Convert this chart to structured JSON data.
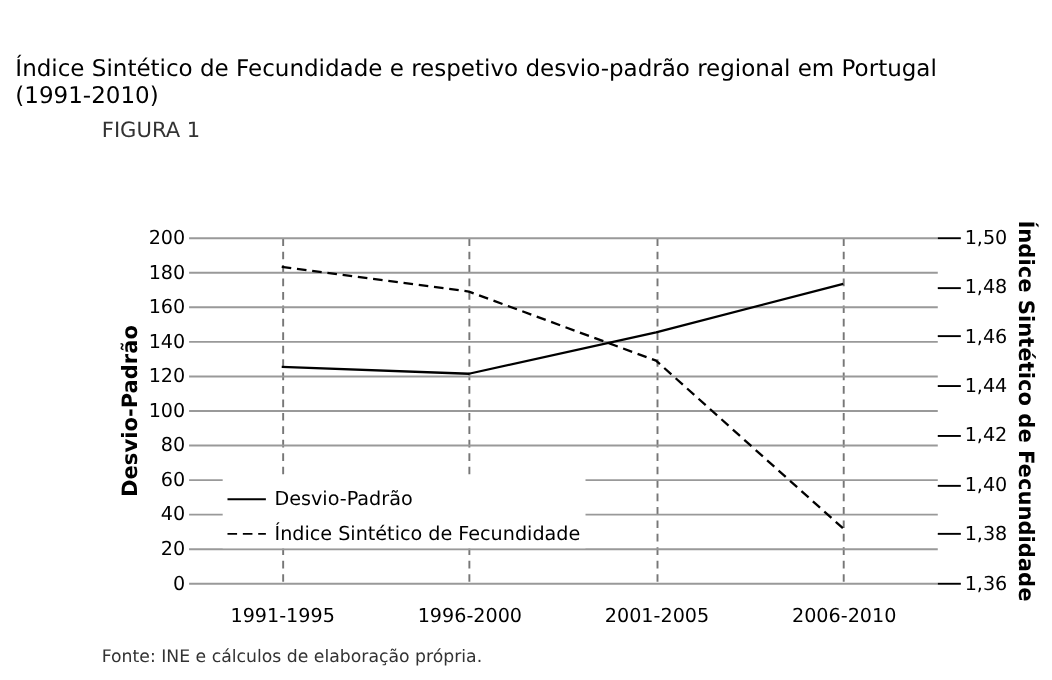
{
  "chart_data": {
    "type": "line",
    "title": "Índice Sintético de Fecundidade e respetivo desvio-padrão regional em Portugal (1991-2010)",
    "annotations": [
      "FIGURA 1",
      "Fonte: INE e cálculos de elaboração própria."
    ],
    "categories": [
      "1991-1995",
      "1996-2000",
      "2001-2005",
      "2006-2010"
    ],
    "series": [
      {
        "name": "Desvio-Padrão",
        "color": "#000000",
        "values": [
          125,
          121,
          145,
          173
        ],
        "line_style": "solid"
      },
      {
        "name": "Índice Sintético de Fecundidade",
        "color": "#000000",
        "values": [
          1.488,
          1.478,
          1.45,
          1.382
        ],
        "line_style": "dashed",
        "axis": "y2"
      }
    ],
    "ylabel": "Desvio-Padrão",
    "y2label": "Índice Sintético de Fecundidade",
    "ylim": [
      0,
      200
    ],
    "yticks": [
      0,
      20,
      40,
      60,
      80,
      100,
      120,
      140,
      160,
      180,
      200
    ],
    "y2lim": [
      1.36,
      1.5
    ],
    "y2ticks": [
      {
        "value": 1.36,
        "label": "1,36"
      },
      {
        "value": 1.38,
        "label": "1,38"
      },
      {
        "value": 1.4,
        "label": "1,40"
      },
      {
        "value": 1.42,
        "label": "1,42"
      },
      {
        "value": 1.44,
        "label": "1,44"
      },
      {
        "value": 1.46,
        "label": "1,46"
      },
      {
        "value": 1.48,
        "label": "1,48"
      },
      {
        "value": 1.5,
        "label": "1,50"
      }
    ],
    "grid": true,
    "legend": "bottom left",
    "marker": "none"
  }
}
